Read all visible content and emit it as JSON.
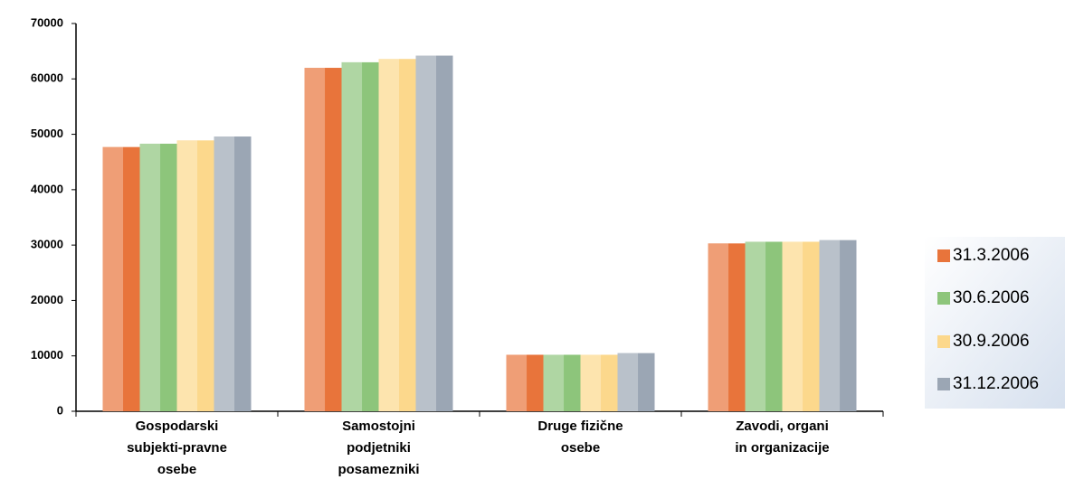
{
  "chart_data": {
    "type": "bar",
    "categories": [
      [
        "Gospodarski",
        "subjekti-pravne",
        "osebe"
      ],
      [
        "Samostojni",
        "podjetniki",
        "posamezniki"
      ],
      [
        "Druge fizične",
        "osebe"
      ],
      [
        "Zavodi, organi",
        "in organizacije"
      ]
    ],
    "series": [
      {
        "name": "31.3.2006",
        "color": "#e8743b",
        "values": [
          47700,
          62000,
          10200,
          30300
        ]
      },
      {
        "name": "30.6.2006",
        "color": "#8dc57b",
        "values": [
          48300,
          63000,
          10200,
          30600
        ]
      },
      {
        "name": "30.9.2006",
        "color": "#fcd88c",
        "values": [
          48900,
          63600,
          10200,
          30600
        ]
      },
      {
        "name": "31.12.2006",
        "color": "#9ba6b4",
        "values": [
          49600,
          64200,
          10500,
          30900
        ]
      }
    ],
    "ylim": [
      0,
      70000
    ],
    "yticks": [
      0,
      10000,
      20000,
      30000,
      40000,
      50000,
      60000,
      70000
    ],
    "legend": "right"
  }
}
